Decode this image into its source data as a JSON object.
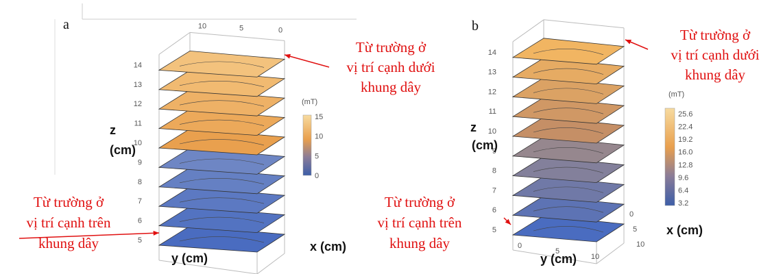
{
  "panels": [
    {
      "label": "a",
      "z_title": "z",
      "z_unit": "(cm)",
      "y_title": "y (cm)",
      "x_title": "x (cm)",
      "z_ticks": [
        "5",
        "6",
        "7",
        "8",
        "9",
        "10",
        "11",
        "12",
        "13",
        "14"
      ],
      "top_ticks": [
        "10",
        "5",
        "0"
      ],
      "colorbar_title": "(mT)",
      "colorbar_ticks": [
        "15",
        "10",
        "5",
        "0"
      ],
      "annotation_top": [
        "Từ trường ở",
        "vị trí cạnh dưới",
        "khung dây"
      ],
      "annotation_bottom": [
        "Từ trường ở",
        "vị trí cạnh trên",
        "khung dây"
      ]
    },
    {
      "label": "b",
      "z_title": "z",
      "z_unit": "(cm)",
      "y_title": "y (cm)",
      "x_title": "x (cm)",
      "z_ticks": [
        "5",
        "6",
        "7",
        "8",
        "9",
        "10",
        "11",
        "12",
        "13",
        "14"
      ],
      "y_ticks": [
        "0",
        "5",
        "10"
      ],
      "x_ticks": [
        "0",
        "5",
        "10"
      ],
      "colorbar_title": "(mT)",
      "colorbar_ticks": [
        "25.6",
        "22.4",
        "19.2",
        "16.0",
        "12.8",
        "9.6",
        "6.4",
        "3.2"
      ],
      "annotation_top": [
        "Từ trường ở",
        "vị trí cạnh dưới",
        "khung dây"
      ],
      "annotation_bottom": [
        "Từ trường ở",
        "vị trí cạnh trên",
        "khung dây"
      ]
    }
  ]
}
